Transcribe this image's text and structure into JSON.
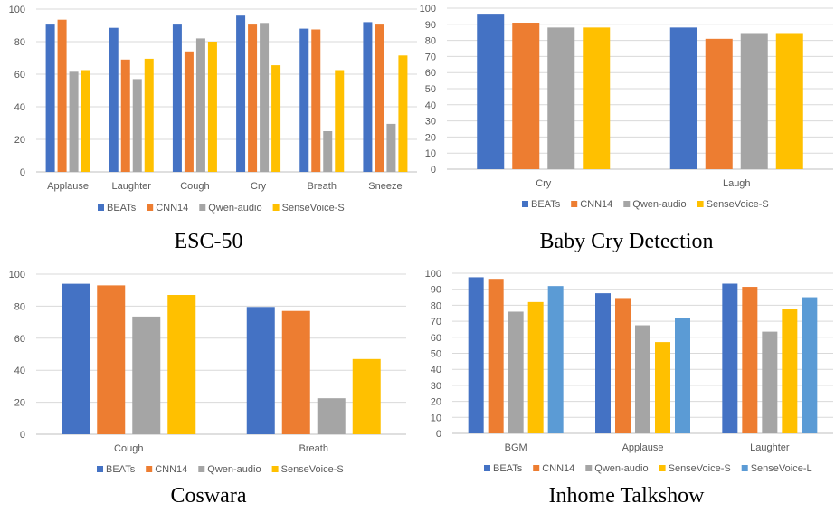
{
  "colors": {
    "BEATs": "#4472c4",
    "CNN14": "#ed7d31",
    "Qwen-audio": "#a5a5a5",
    "SenseVoice-S": "#ffc000",
    "SenseVoice-L": "#5b9bd5",
    "grid": "#d9d9d9",
    "axis": "#bfbfbf"
  },
  "chart_data": [
    {
      "type": "bar",
      "caption": "ESC-50",
      "categories": [
        "Applause",
        "Laughter",
        "Cough",
        "Cry",
        "Breath",
        "Sneeze"
      ],
      "series": [
        {
          "name": "BEATs",
          "values": [
            90.5,
            88.5,
            90.5,
            96,
            88,
            92
          ]
        },
        {
          "name": "CNN14",
          "values": [
            93.5,
            69,
            74,
            90.5,
            87.5,
            90.5
          ]
        },
        {
          "name": "Qwen-audio",
          "values": [
            61.5,
            57,
            82,
            91.5,
            25,
            29.5
          ]
        },
        {
          "name": "SenseVoice-S",
          "values": [
            62.5,
            69.5,
            80,
            65.5,
            62.5,
            71.5
          ]
        }
      ],
      "ylim": [
        0,
        100
      ],
      "yticks": [
        "0",
        "20",
        "40",
        "60",
        "80",
        "100"
      ],
      "legend_position": "bottom",
      "grid": true
    },
    {
      "type": "bar",
      "caption": "Baby Cry Detection",
      "categories": [
        "Cry",
        "Laugh"
      ],
      "series": [
        {
          "name": "BEATs",
          "values": [
            96,
            88
          ]
        },
        {
          "name": "CNN14",
          "values": [
            91,
            81
          ]
        },
        {
          "name": "Qwen-audio",
          "values": [
            88,
            84
          ]
        },
        {
          "name": "SenseVoice-S",
          "values": [
            88,
            84
          ]
        }
      ],
      "ylim": [
        0,
        100
      ],
      "yticks": [
        "0",
        "10",
        "20",
        "30",
        "40",
        "50",
        "60",
        "70",
        "80",
        "90",
        "100"
      ],
      "legend_position": "bottom",
      "grid": true
    },
    {
      "type": "bar",
      "caption": "Coswara",
      "categories": [
        "Cough",
        "Breath"
      ],
      "series": [
        {
          "name": "BEATs",
          "values": [
            94,
            79.5
          ]
        },
        {
          "name": "CNN14",
          "values": [
            93,
            77
          ]
        },
        {
          "name": "Qwen-audio",
          "values": [
            73.5,
            22.5
          ]
        },
        {
          "name": "SenseVoice-S",
          "values": [
            87,
            47
          ]
        }
      ],
      "ylim": [
        0,
        100
      ],
      "yticks": [
        "0",
        "20",
        "40",
        "60",
        "80",
        "100"
      ],
      "legend_position": "bottom",
      "grid": true
    },
    {
      "type": "bar",
      "caption": "Inhome Talkshow",
      "categories": [
        "BGM",
        "Applause",
        "Laughter"
      ],
      "series": [
        {
          "name": "BEATs",
          "values": [
            97.5,
            87.5,
            93.5
          ]
        },
        {
          "name": "CNN14",
          "values": [
            96.5,
            84.5,
            91.5
          ]
        },
        {
          "name": "Qwen-audio",
          "values": [
            76,
            67.5,
            63.5
          ]
        },
        {
          "name": "SenseVoice-S",
          "values": [
            82,
            57,
            77.5
          ]
        },
        {
          "name": "SenseVoice-L",
          "values": [
            92,
            72,
            85
          ]
        }
      ],
      "ylim": [
        0,
        100
      ],
      "yticks": [
        "0",
        "10",
        "20",
        "30",
        "40",
        "50",
        "60",
        "70",
        "80",
        "90",
        "100"
      ],
      "legend_position": "bottom",
      "grid": true
    }
  ]
}
